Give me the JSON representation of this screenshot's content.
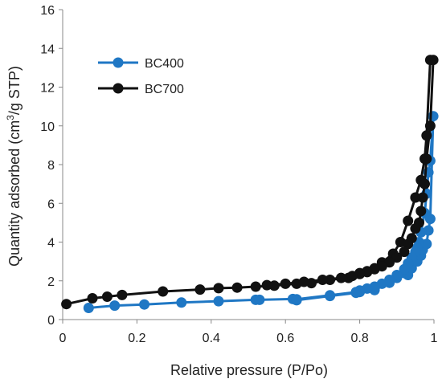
{
  "chart_data": {
    "type": "line",
    "xlabel": "Relative pressure (P/Po)",
    "ylabel_main": "Quantity adsorbed (cm",
    "ylabel_sup": "3",
    "ylabel_end": "/g STP)",
    "xlim": [
      0,
      1
    ],
    "ylim": [
      0,
      16
    ],
    "xticks": [
      0,
      0.2,
      0.4,
      0.6,
      0.8,
      1
    ],
    "xtick_labels": [
      "0",
      "0.2",
      "0.4",
      "0.6",
      "0.8",
      "1"
    ],
    "yticks": [
      0,
      2,
      4,
      6,
      8,
      10,
      12,
      14,
      16
    ],
    "ytick_labels": [
      "0",
      "2",
      "4",
      "6",
      "8",
      "10",
      "12",
      "14",
      "16"
    ],
    "grid": false,
    "legend_position": "top-left",
    "series": [
      {
        "name": "BC400",
        "color": "#1f77c4",
        "x": [
          0.07,
          0.14,
          0.22,
          0.32,
          0.42,
          0.52,
          0.53,
          0.62,
          0.63,
          0.72,
          0.79,
          0.8,
          0.84,
          0.88,
          0.9,
          0.92,
          0.93,
          0.94,
          0.955,
          0.965,
          0.97,
          0.98,
          0.985,
          0.99,
          0.998,
          0.99,
          0.985,
          0.98,
          0.975,
          0.965,
          0.96,
          0.955,
          0.95,
          0.94,
          0.93,
          0.92,
          0.9,
          0.88,
          0.86,
          0.84,
          0.82,
          0.8,
          0.79,
          0.72,
          0.63
        ],
        "y": [
          0.6,
          0.72,
          0.78,
          0.88,
          0.95,
          1.02,
          1.02,
          1.06,
          1.0,
          1.22,
          1.38,
          1.42,
          1.52,
          1.9,
          2.15,
          2.4,
          2.3,
          2.65,
          3.0,
          3.3,
          3.6,
          3.9,
          4.6,
          5.2,
          10.5,
          8.2,
          7.6,
          6.5,
          5.5,
          4.5,
          4.0,
          3.7,
          3.5,
          3.2,
          2.9,
          2.6,
          2.3,
          2.05,
          1.85,
          1.7,
          1.6,
          1.5,
          1.42,
          1.25,
          1.05
        ]
      },
      {
        "name": "BC700",
        "color": "#111111",
        "x": [
          0.01,
          0.08,
          0.12,
          0.16,
          0.27,
          0.37,
          0.42,
          0.47,
          0.52,
          0.57,
          0.63,
          0.67,
          0.72,
          0.77,
          0.8,
          0.82,
          0.84,
          0.86,
          0.89,
          0.91,
          0.93,
          0.95,
          0.965,
          0.975,
          0.98,
          0.99,
          0.998,
          0.99,
          0.98,
          0.975,
          0.97,
          0.965,
          0.96,
          0.95,
          0.94,
          0.93,
          0.92,
          0.9,
          0.88,
          0.86,
          0.84,
          0.82,
          0.8,
          0.78,
          0.75,
          0.7,
          0.65,
          0.6,
          0.55
        ],
        "y": [
          0.8,
          1.1,
          1.18,
          1.27,
          1.45,
          1.55,
          1.62,
          1.65,
          1.7,
          1.75,
          1.85,
          1.88,
          2.05,
          2.15,
          2.4,
          2.5,
          2.65,
          2.95,
          3.4,
          4.0,
          5.1,
          6.3,
          7.2,
          8.3,
          9.5,
          13.4,
          13.4,
          10.0,
          8.3,
          7.0,
          6.3,
          5.6,
          5.0,
          4.7,
          4.2,
          3.9,
          3.5,
          3.2,
          2.95,
          2.75,
          2.6,
          2.45,
          2.35,
          2.25,
          2.15,
          2.05,
          1.95,
          1.85,
          1.78
        ]
      }
    ]
  }
}
